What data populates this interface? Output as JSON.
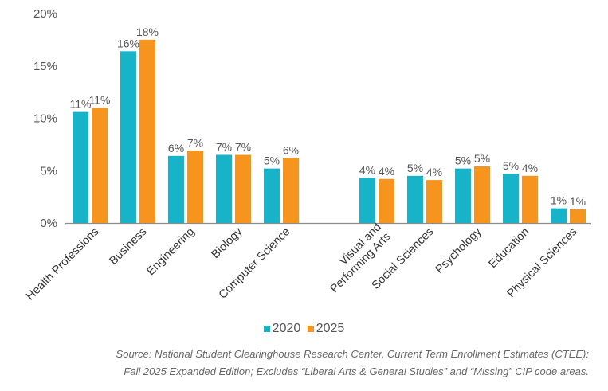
{
  "chart_data": {
    "type": "bar",
    "y_ticks": [
      "0%",
      "5%",
      "10%",
      "15%",
      "20%"
    ],
    "ylim": [
      0,
      20
    ],
    "grid": false,
    "legend_position": "bottom",
    "categories": [
      {
        "label": [
          "Health Professions"
        ],
        "values": [
          10.6,
          11.0
        ],
        "labels": [
          "11%",
          "11%"
        ]
      },
      {
        "label": [
          "Business"
        ],
        "values": [
          16.4,
          17.5
        ],
        "labels": [
          "16%",
          "18%"
        ]
      },
      {
        "label": [
          "Engineering"
        ],
        "values": [
          6.4,
          6.9
        ],
        "labels": [
          "6%",
          "7%"
        ]
      },
      {
        "label": [
          "Biology"
        ],
        "values": [
          6.5,
          6.5
        ],
        "labels": [
          "7%",
          "7%"
        ]
      },
      {
        "label": [
          "Computer Science"
        ],
        "values": [
          5.2,
          6.2
        ],
        "labels": [
          "5%",
          "6%"
        ]
      },
      {
        "label": [
          "Visual and",
          "Performing Arts"
        ],
        "values": [
          4.3,
          4.2
        ],
        "labels": [
          "4%",
          "4%"
        ]
      },
      {
        "label": [
          "Social Sciences"
        ],
        "values": [
          4.5,
          4.1
        ],
        "labels": [
          "5%",
          "4%"
        ]
      },
      {
        "label": [
          "Psychology"
        ],
        "values": [
          5.2,
          5.4
        ],
        "labels": [
          "5%",
          "5%"
        ]
      },
      {
        "label": [
          "Education"
        ],
        "values": [
          4.7,
          4.5
        ],
        "labels": [
          "5%",
          "4%"
        ]
      },
      {
        "label": [
          "Physical Sciences"
        ],
        "values": [
          1.4,
          1.3
        ],
        "labels": [
          "1%",
          "1%"
        ]
      }
    ],
    "series": [
      {
        "name": "2020",
        "color": "#17b3c9"
      },
      {
        "name": "2025",
        "color": "#f7941d"
      }
    ]
  },
  "source": {
    "line1": "Source: National Student Clearinghouse Research Center, Current Term Enrollment Estimates (CTEE):",
    "line2": "Fall 2025 Expanded Edition; Excludes “Liberal Arts & General Studies” and “Missing” CIP code areas."
  }
}
